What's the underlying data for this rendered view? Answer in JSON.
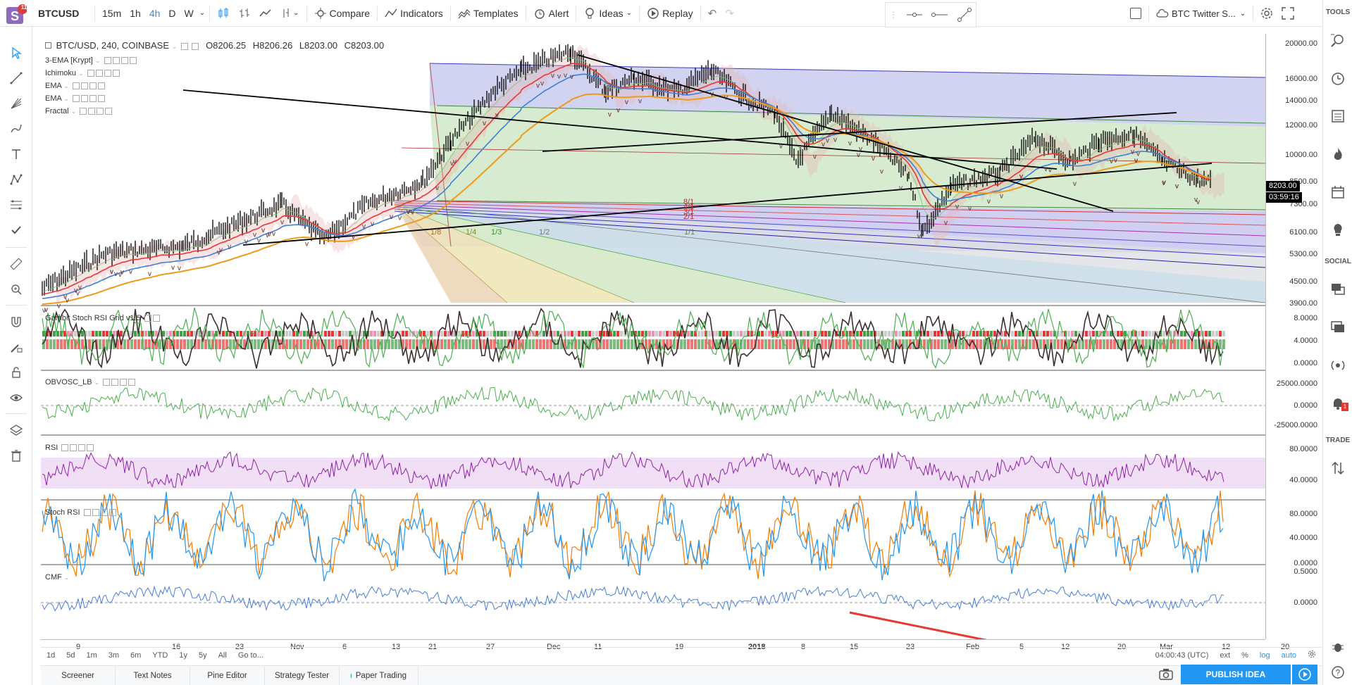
{
  "header": {
    "symbol": "BTCUSD",
    "notification_count": "11",
    "intervals": [
      "15m",
      "1h",
      "4h",
      "D",
      "W"
    ],
    "active_interval": "4h",
    "compare_label": "Compare",
    "indicators_label": "Indicators",
    "templates_label": "Templates",
    "alert_label": "Alert",
    "ideas_label": "Ideas",
    "replay_label": "Replay",
    "layout_name": "BTC Twitter S..."
  },
  "legend": {
    "title": "BTC/USD, 240, COINBASE",
    "open": "O8206.25",
    "high": "H8206.26",
    "low": "L8203.00",
    "close": "C8203.00",
    "studies": [
      "3-EMA [Krypt]",
      "Ichimoku",
      "EMA",
      "EMA",
      "Fractal"
    ]
  },
  "price_axis": {
    "ticks": [
      "20000.00",
      "16000.00",
      "14000.00",
      "12000.00",
      "10000.00",
      "8500.00",
      "7300.00",
      "6100.00",
      "5300.00",
      "4500.00",
      "3900.00"
    ],
    "last_price": "8203.00",
    "countdown": "03:59:16"
  },
  "fib_labels": [
    "1/8",
    "1/4",
    "1/3",
    "1/2",
    "1/1",
    "8/1",
    "4/1",
    "3/1",
    "2/1"
  ],
  "panes": [
    {
      "label": "Gambit Stoch RSI Grid v1.5",
      "ticks": [
        "8.0000",
        "4.0000",
        "0.0000"
      ]
    },
    {
      "label": "OBVOSC_LB",
      "ticks": [
        "25000.0000",
        "0.0000",
        "-25000.0000"
      ]
    },
    {
      "label": "RSI",
      "ticks": [
        "80.0000",
        "40.0000"
      ]
    },
    {
      "label": "Stoch RSI",
      "ticks": [
        "80.0000",
        "40.0000",
        "0.0000"
      ]
    },
    {
      "label": "CMF",
      "ticks": [
        "0.5000",
        "0.0000"
      ]
    }
  ],
  "time_axis": [
    "9",
    "16",
    "23",
    "Nov",
    "6",
    "13",
    "21",
    "27",
    "Dec",
    "11",
    "19",
    "2018",
    "8",
    "15",
    "23",
    "Feb",
    "5",
    "12",
    "20",
    "Mar",
    "12",
    "20"
  ],
  "range_bar": {
    "ranges": [
      "1d",
      "5d",
      "1m",
      "3m",
      "6m",
      "YTD",
      "1y",
      "5y",
      "All"
    ],
    "goto_label": "Go to...",
    "clock": "04:00:43 (UTC)",
    "ext_label": "ext",
    "percent_label": "%",
    "log_label": "log",
    "auto_label": "auto"
  },
  "bottom_tabs": [
    "Screener",
    "Text Notes",
    "Pine Editor",
    "Strategy Tester",
    "Paper Trading"
  ],
  "publish_label": "PUBLISH IDEA",
  "right_panel": {
    "tools_label": "TOOLS",
    "social_label": "SOCIAL",
    "trade_label": "TRADE"
  },
  "colors": {
    "accent": "#2196f3",
    "candle": "#000000",
    "ema_red": "#e53935",
    "ema_blue": "#3f7fd6",
    "ema_orange": "#f09a1a",
    "rsi": "#8e24aa",
    "stoch_blue": "#2196f3",
    "stoch_orange": "#f57c00"
  }
}
